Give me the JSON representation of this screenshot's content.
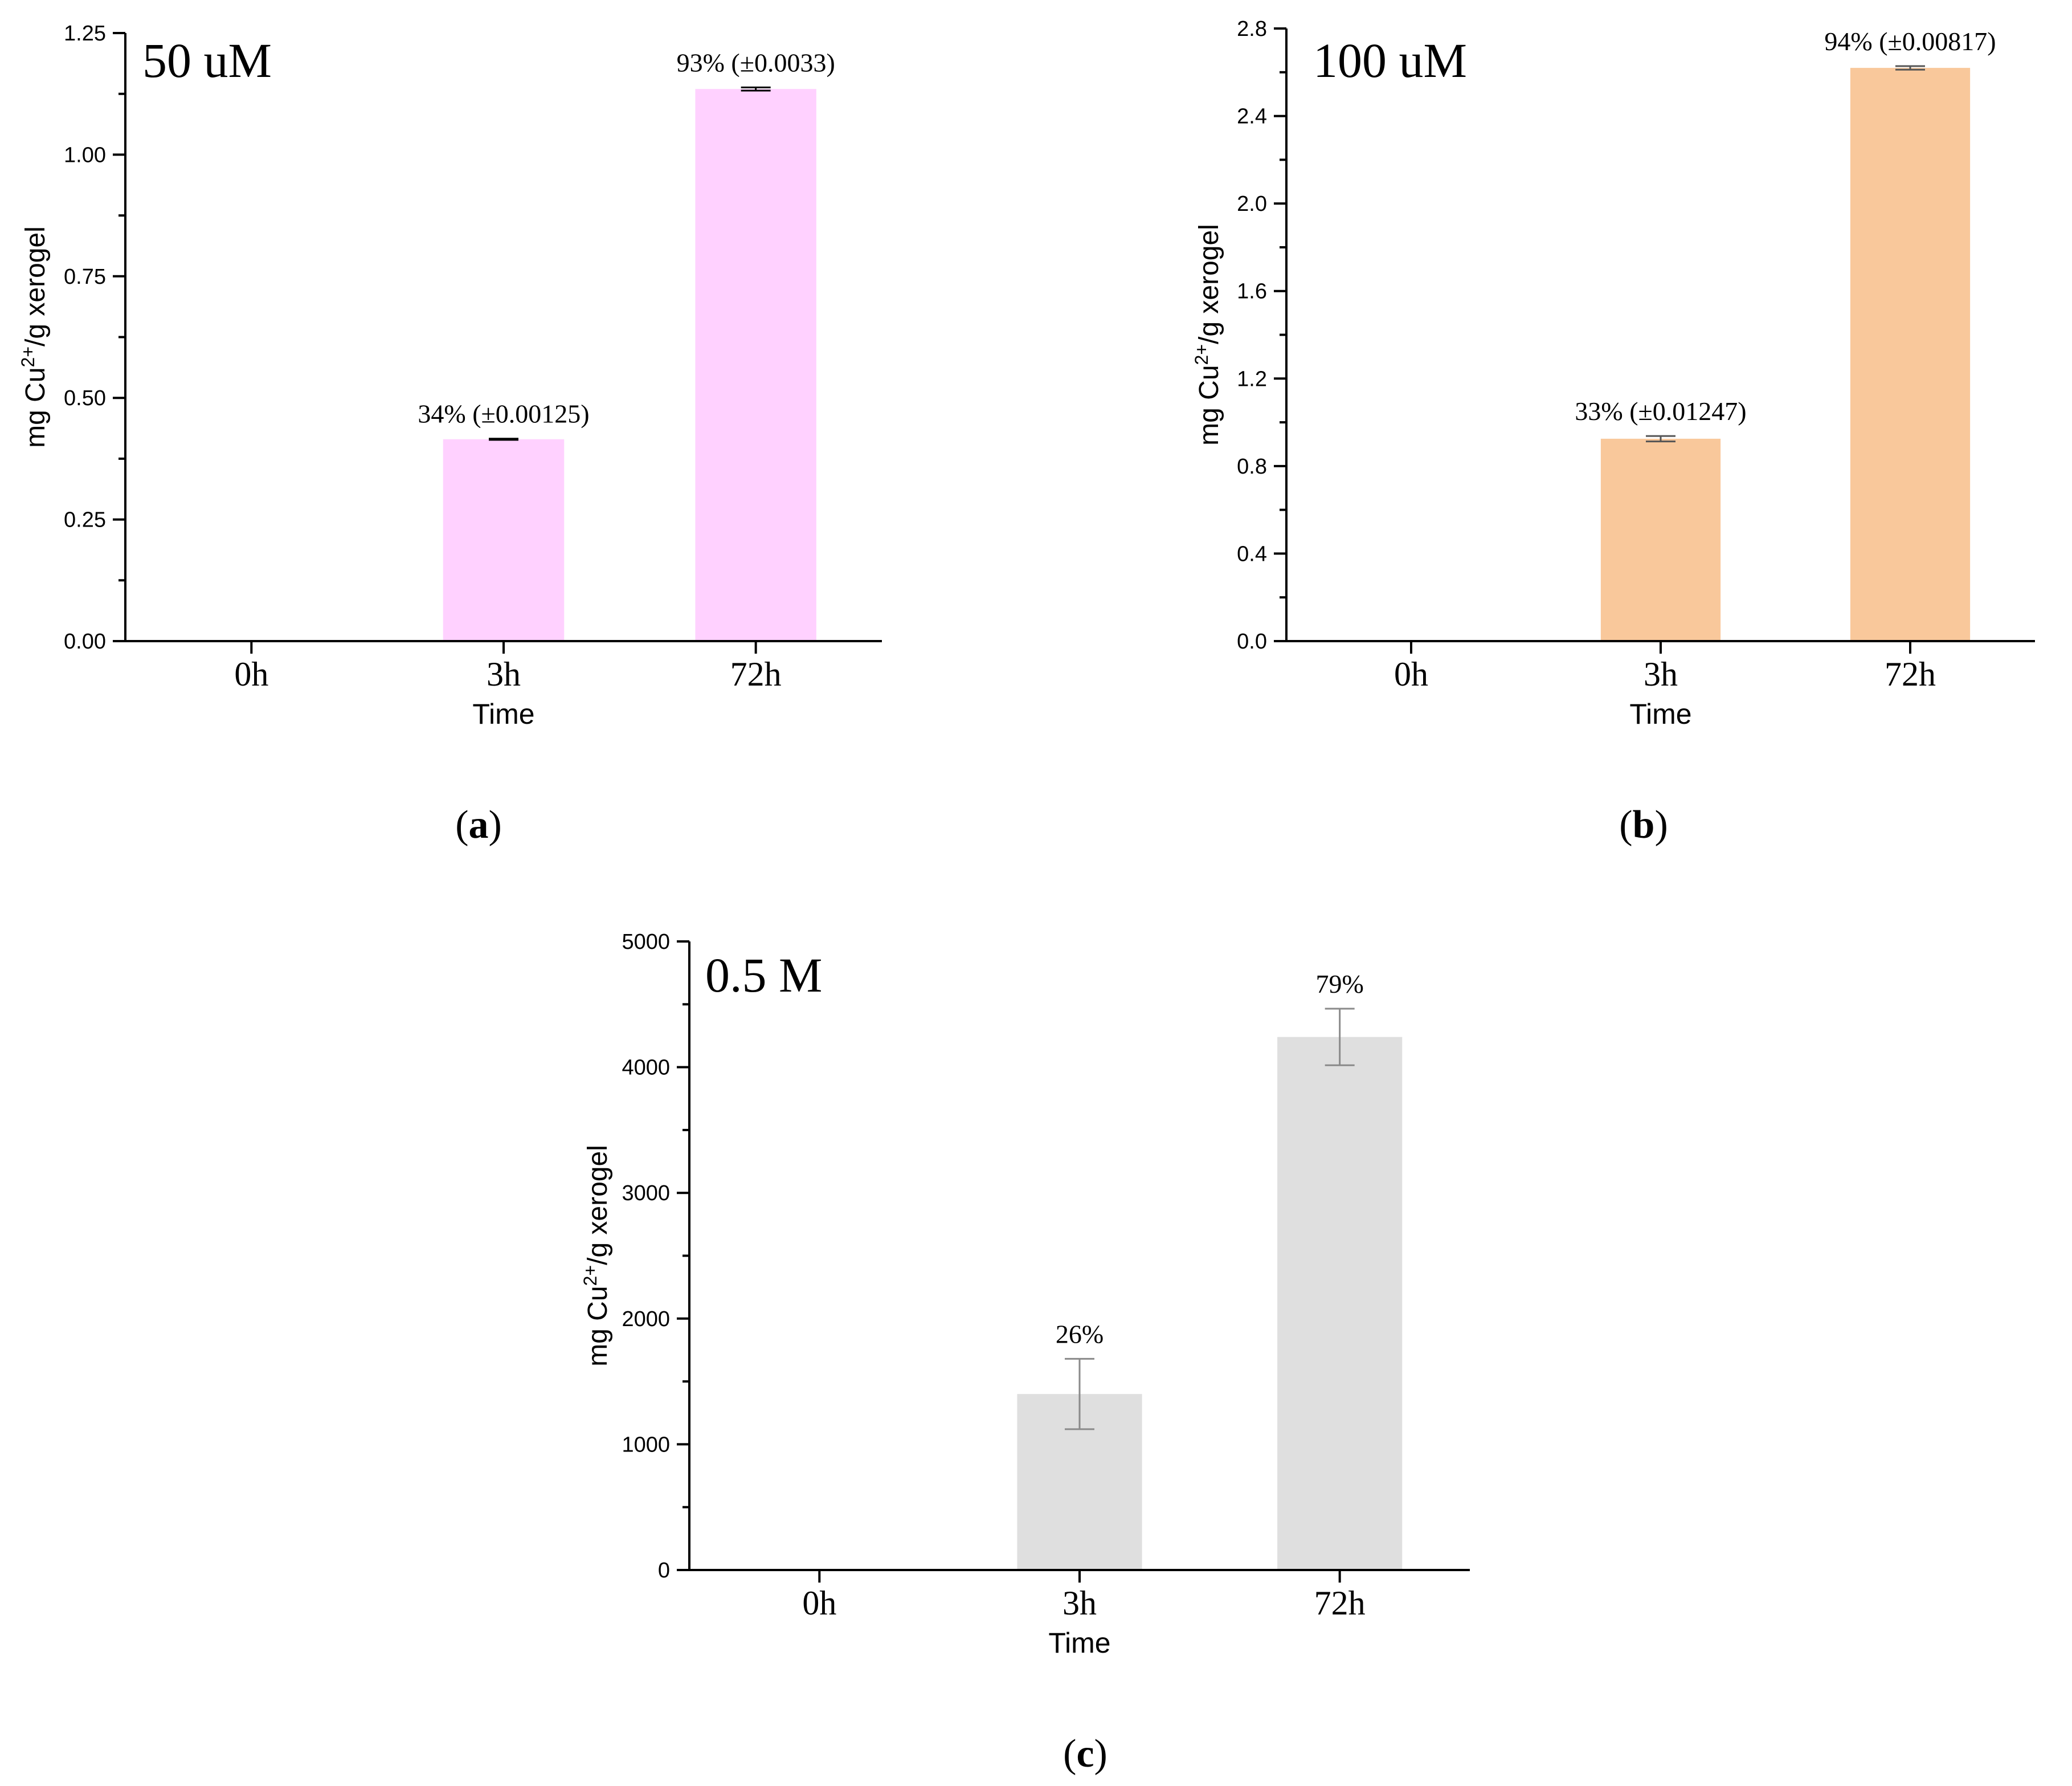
{
  "chart_data": [
    {
      "type": "bar",
      "panel": "a",
      "concentration": "50 uM",
      "categories": [
        "0h",
        "3h",
        "72h"
      ],
      "values": [
        0,
        0.415,
        1.135
      ],
      "errors": [
        0,
        0.00125,
        0.0033
      ],
      "data_labels": [
        "",
        "34% (±0.00125)",
        "93% (±0.0033)"
      ],
      "xlabel": "Time",
      "ylabel": "mg Cu2+/g xerogel",
      "ylim": [
        0,
        1.25
      ],
      "yticks": [
        0,
        0.25,
        0.5,
        0.75,
        1.0,
        1.25
      ],
      "ytick_labels": [
        "0.00",
        "0.25",
        "0.50",
        "0.75",
        "1.00",
        "1.25"
      ],
      "bar_color": "#FFD1FF",
      "error_color": "#000000"
    },
    {
      "type": "bar",
      "panel": "b",
      "concentration": "100 uM",
      "categories": [
        "0h",
        "3h",
        "72h"
      ],
      "values": [
        0,
        0.925,
        2.62
      ],
      "errors": [
        0,
        0.01247,
        0.00817
      ],
      "data_labels": [
        "",
        "33% (±0.01247)",
        "94% (±0.00817)"
      ],
      "xlabel": "Time",
      "ylabel": "mg Cu2+/g xerogel",
      "ylim": [
        0,
        2.8
      ],
      "yticks": [
        0,
        0.4,
        0.8,
        1.2,
        1.6,
        2.0,
        2.4,
        2.8
      ],
      "ytick_labels": [
        "0.0",
        "0.4",
        "0.8",
        "1.2",
        "1.6",
        "2.0",
        "2.4",
        "2.8"
      ],
      "bar_color": "#F9C89B",
      "error_color": "#555555"
    },
    {
      "type": "bar",
      "panel": "c",
      "concentration": "0.5 M",
      "categories": [
        "0h",
        "3h",
        "72h"
      ],
      "values": [
        0,
        1400,
        4240
      ],
      "errors": [
        0,
        280,
        225
      ],
      "data_labels": [
        "",
        "26%",
        "79%"
      ],
      "xlabel": "Time",
      "ylabel": "mg Cu2+/g xerogel",
      "ylim": [
        0,
        5000
      ],
      "yticks": [
        0,
        1000,
        2000,
        3000,
        4000,
        5000
      ],
      "ytick_labels": [
        "0",
        "1000",
        "2000",
        "3000",
        "4000",
        "5000"
      ],
      "bar_color": "#DFDFDF",
      "error_color": "#8A8A8A"
    }
  ]
}
